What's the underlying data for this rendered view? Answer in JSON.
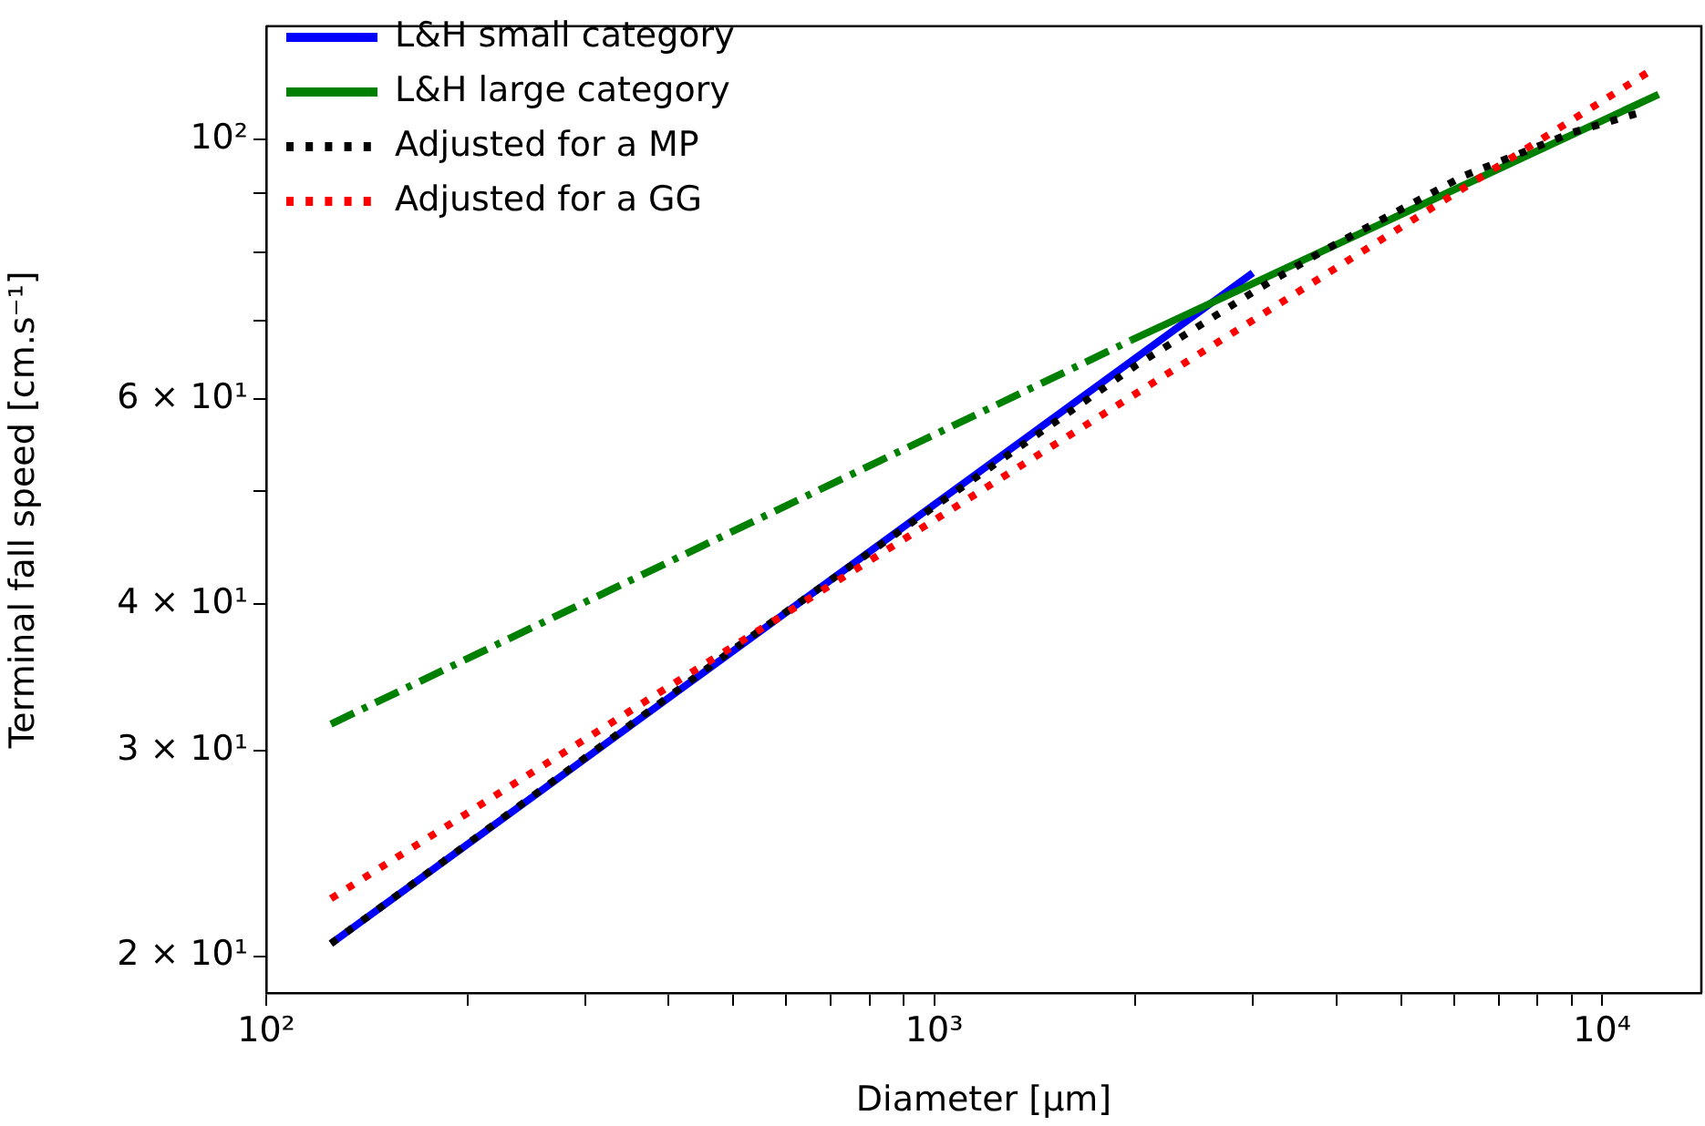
{
  "chart_data": {
    "type": "line",
    "xlabel": "Diameter [μm]",
    "ylabel": "Terminal fall speed [cm.s⁻¹]",
    "log": "xy",
    "legend": "top left",
    "marker": "none",
    "grid": false,
    "xlim": [
      100,
      14080
    ],
    "ylim": [
      18.6,
      125
    ],
    "xticks": [
      {
        "value": 100,
        "label": "10²"
      },
      {
        "value": 200,
        "label": null
      },
      {
        "value": 300,
        "label": null
      },
      {
        "value": 400,
        "label": null
      },
      {
        "value": 500,
        "label": null
      },
      {
        "value": 600,
        "label": null
      },
      {
        "value": 700,
        "label": null
      },
      {
        "value": 800,
        "label": null
      },
      {
        "value": 900,
        "label": null
      },
      {
        "value": 1000,
        "label": "10³"
      },
      {
        "value": 2000,
        "label": null
      },
      {
        "value": 3000,
        "label": null
      },
      {
        "value": 4000,
        "label": null
      },
      {
        "value": 5000,
        "label": null
      },
      {
        "value": 6000,
        "label": null
      },
      {
        "value": 7000,
        "label": null
      },
      {
        "value": 8000,
        "label": null
      },
      {
        "value": 9000,
        "label": null
      },
      {
        "value": 10000,
        "label": "10⁴"
      }
    ],
    "yticks": [
      {
        "value": 20,
        "label": "2 × 10¹"
      },
      {
        "value": 30,
        "label": "3 × 10¹"
      },
      {
        "value": 40,
        "label": "4 × 10¹"
      },
      {
        "value": 50,
        "label": null
      },
      {
        "value": 60,
        "label": "6 × 10¹"
      },
      {
        "value": 70,
        "label": null
      },
      {
        "value": 80,
        "label": null
      },
      {
        "value": 90,
        "label": null
      },
      {
        "value": 100,
        "label": "10²"
      }
    ],
    "series": [
      {
        "name": "L&H small category",
        "color": "#0000ff",
        "line_style": "solid",
        "x": [
          125,
          3000
        ],
        "values": [
          20.5,
          76.9
        ]
      },
      {
        "name": "L&H large category",
        "color": "#008000",
        "line_style": "solid",
        "x": [
          1970,
          12150
        ],
        "values": [
          67.3,
          109.3
        ]
      },
      {
        "color": "#008000",
        "line_style": "dashed",
        "x": [
          125,
          1970
        ],
        "values": [
          31.6,
          67.3
        ]
      },
      {
        "name": "Adjusted for a MP",
        "color": "#000000",
        "line_style": "dotted",
        "x": [
          125,
          500,
          1000,
          2000,
          3055,
          3855,
          6210,
          9040,
          11620
        ],
        "values": [
          20.5,
          36.6,
          48.5,
          64,
          74.5,
          80.5,
          93.1,
          101.4,
          105.8
        ]
      },
      {
        "name": "Adjusted for a GG",
        "color": "#ff0000",
        "line_style": "dotted",
        "x": [
          125,
          11900
        ],
        "values": [
          22.4,
          114.8
        ]
      }
    ]
  }
}
